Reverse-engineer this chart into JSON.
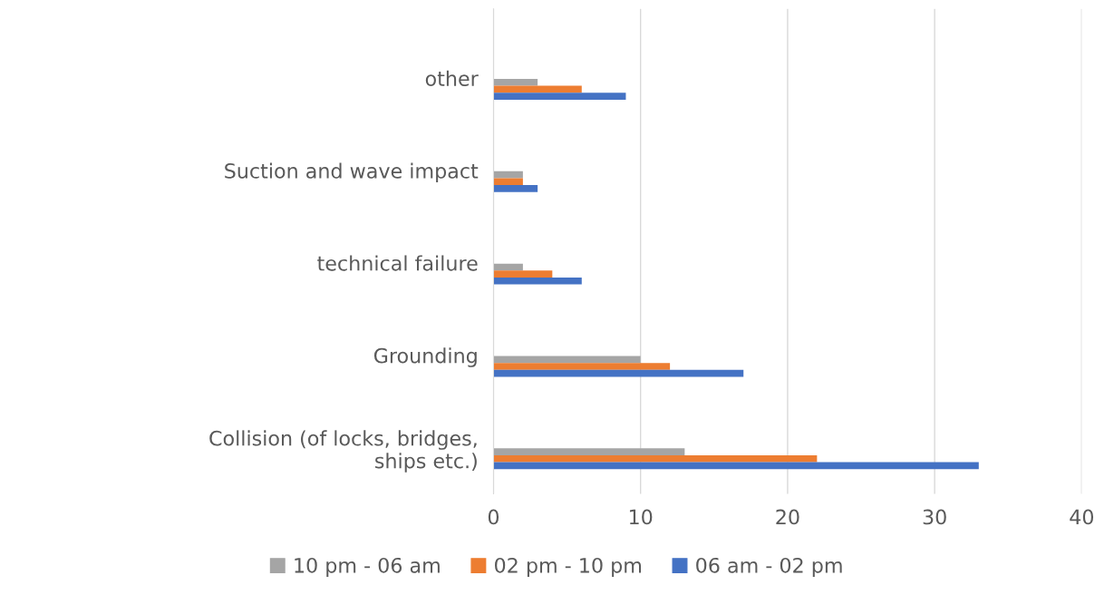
{
  "chart_data": {
    "type": "bar",
    "orientation": "horizontal",
    "categories": [
      "other",
      "Suction and wave impact",
      "technical failure",
      "Grounding",
      "Collision (of locks, bridges, ships etc.)"
    ],
    "series": [
      {
        "name": "10 pm - 06 am",
        "color": "#a5a5a5",
        "values": [
          3,
          2,
          2,
          10,
          13
        ]
      },
      {
        "name": "02 pm - 10 pm",
        "color": "#ed7d31",
        "values": [
          6,
          2,
          4,
          12,
          22
        ]
      },
      {
        "name": "06 am - 02 pm",
        "color": "#4472c4",
        "values": [
          9,
          3,
          6,
          17,
          33
        ]
      }
    ],
    "xlim": [
      0,
      40
    ],
    "xticks": [
      0,
      10,
      20,
      30,
      40
    ],
    "grid": "x",
    "legend": "bottom"
  }
}
